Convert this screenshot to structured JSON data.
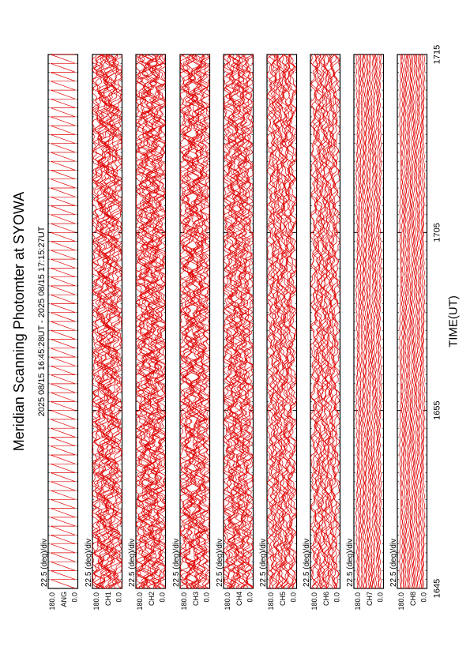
{
  "title": "Meridian Scanning Photomter at SYOWA",
  "time_range": "2025 08/15 16:45:28UT - 2025 08/15 17:15:27UT",
  "colors": {
    "trace": "#e00000",
    "frame": "#000000",
    "background": "#ffffff"
  },
  "chart_data": {
    "type": "line",
    "title": "Meridian Scanning Photomter at SYOWA",
    "subtitle": "2025 08/15 16:45:28UT - 2025 08/15 17:15:27UT",
    "xlabel": "TIME(UT)",
    "x_ticks": [
      "1645",
      "1655",
      "1705",
      "1715"
    ],
    "xlim": [
      "1645",
      "1715"
    ],
    "y_scale_label": "22.5 (deg)/div",
    "ylim": [
      0.0,
      180.0
    ],
    "y_tick_labels": [
      "0.0",
      "180.0"
    ],
    "grid": false,
    "panels": [
      {
        "channel": "ANG",
        "scale": "22.5 (deg)/div",
        "style": "sawtooth",
        "amplitude": 0.15
      },
      {
        "channel": "CH1",
        "scale": "22.5 (deg)/div",
        "style": "wavy",
        "amplitude": 0.55
      },
      {
        "channel": "CH2",
        "scale": "22.5 (deg)/div",
        "style": "wavy",
        "amplitude": 0.6
      },
      {
        "channel": "CH3",
        "scale": "22.5 (deg)/div",
        "style": "wavy",
        "amplitude": 0.55
      },
      {
        "channel": "CH4",
        "scale": "22.5 (deg)/div",
        "style": "wavy",
        "amplitude": 0.5
      },
      {
        "channel": "CH5",
        "scale": "22.5 (deg)/div",
        "style": "wavy",
        "amplitude": 0.35
      },
      {
        "channel": "CH6",
        "scale": "22.5 (deg)/div",
        "style": "wavy",
        "amplitude": 0.3
      },
      {
        "channel": "CH7",
        "scale": "22.5 (deg)/div",
        "style": "smooth",
        "amplitude": 0.12
      },
      {
        "channel": "CH8",
        "scale": "22.5 (deg)/div",
        "style": "smooth",
        "amplitude": 0.1
      }
    ]
  }
}
